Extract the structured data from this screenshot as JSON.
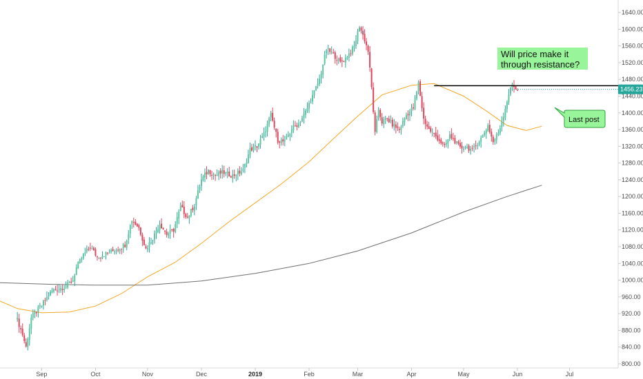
{
  "chart_data": {
    "type": "candlestick",
    "title": "",
    "xlabel": "",
    "ylabel": "",
    "ylim": [
      790,
      1660
    ],
    "y_ticks": [
      800,
      840,
      880,
      920,
      960,
      1000,
      1040,
      1080,
      1120,
      1160,
      1200,
      1240,
      1280,
      1320,
      1360,
      1400,
      1440,
      1480,
      1520,
      1560,
      1600,
      1640
    ],
    "y_tick_labels": [
      "800.00",
      "840.00",
      "880.00",
      "920.00",
      "960.00",
      "1000.00",
      "1040.00",
      "1080.00",
      "1120.00",
      "1160.00",
      "1200.00",
      "1240.00",
      "1280.00",
      "1320.00",
      "1360.00",
      "1400.00",
      "1440.00",
      "1480.00",
      "1520.00",
      "1560.00",
      "1600.00",
      "1640.00"
    ],
    "x_tick_labels": [
      "Sep",
      "Oct",
      "Nov",
      "Dec",
      "2019",
      "Feb",
      "Mar",
      "Apr",
      "May",
      "Jun",
      "Jul"
    ],
    "x_tick_days": [
      14,
      45,
      75,
      106,
      137,
      168,
      196,
      227,
      257,
      288,
      318
    ],
    "x_range_days": [
      -10,
      346
    ],
    "bold_tick": "2019",
    "last_price": 1456.23,
    "last_price_label": "1456.23",
    "resistance_level": 1465,
    "resistance_start_day": 240,
    "grid": false,
    "series": [
      {
        "kind": "price",
        "color_up": "#26a69a",
        "color_up_fill": "#5cc69d",
        "color_down": "#e0445a"
      },
      {
        "kind": "ma",
        "color": "#f5a623",
        "points": [
          [
            -10,
            950
          ],
          [
            0,
            932
          ],
          [
            14,
            922
          ],
          [
            30,
            924
          ],
          [
            45,
            938
          ],
          [
            60,
            968
          ],
          [
            75,
            1008
          ],
          [
            91,
            1043
          ],
          [
            106,
            1088
          ],
          [
            122,
            1140
          ],
          [
            137,
            1185
          ],
          [
            152,
            1230
          ],
          [
            168,
            1283
          ],
          [
            182,
            1338
          ],
          [
            196,
            1392
          ],
          [
            210,
            1443
          ],
          [
            227,
            1466
          ],
          [
            240,
            1470
          ],
          [
            257,
            1440
          ],
          [
            270,
            1405
          ],
          [
            282,
            1370
          ],
          [
            293,
            1358
          ],
          [
            302,
            1368
          ]
        ]
      },
      {
        "kind": "ma",
        "color": "#6d6d6d",
        "points": [
          [
            -10,
            994
          ],
          [
            20,
            990
          ],
          [
            45,
            988
          ],
          [
            75,
            988
          ],
          [
            106,
            998
          ],
          [
            137,
            1016
          ],
          [
            168,
            1040
          ],
          [
            196,
            1070
          ],
          [
            227,
            1113
          ],
          [
            257,
            1163
          ],
          [
            282,
            1200
          ],
          [
            293,
            1215
          ],
          [
            302,
            1227
          ]
        ]
      }
    ],
    "annotations": [
      {
        "id": "resistance_note",
        "lines": [
          "Will price make it",
          "through resistance?"
        ]
      },
      {
        "id": "last_post_note",
        "text": "Last post"
      }
    ]
  },
  "colors": {
    "note_fill": "#98f59a",
    "note_border": "#2e9e3e",
    "resistance_line": "#000000",
    "price_tag": "#26a69a"
  }
}
